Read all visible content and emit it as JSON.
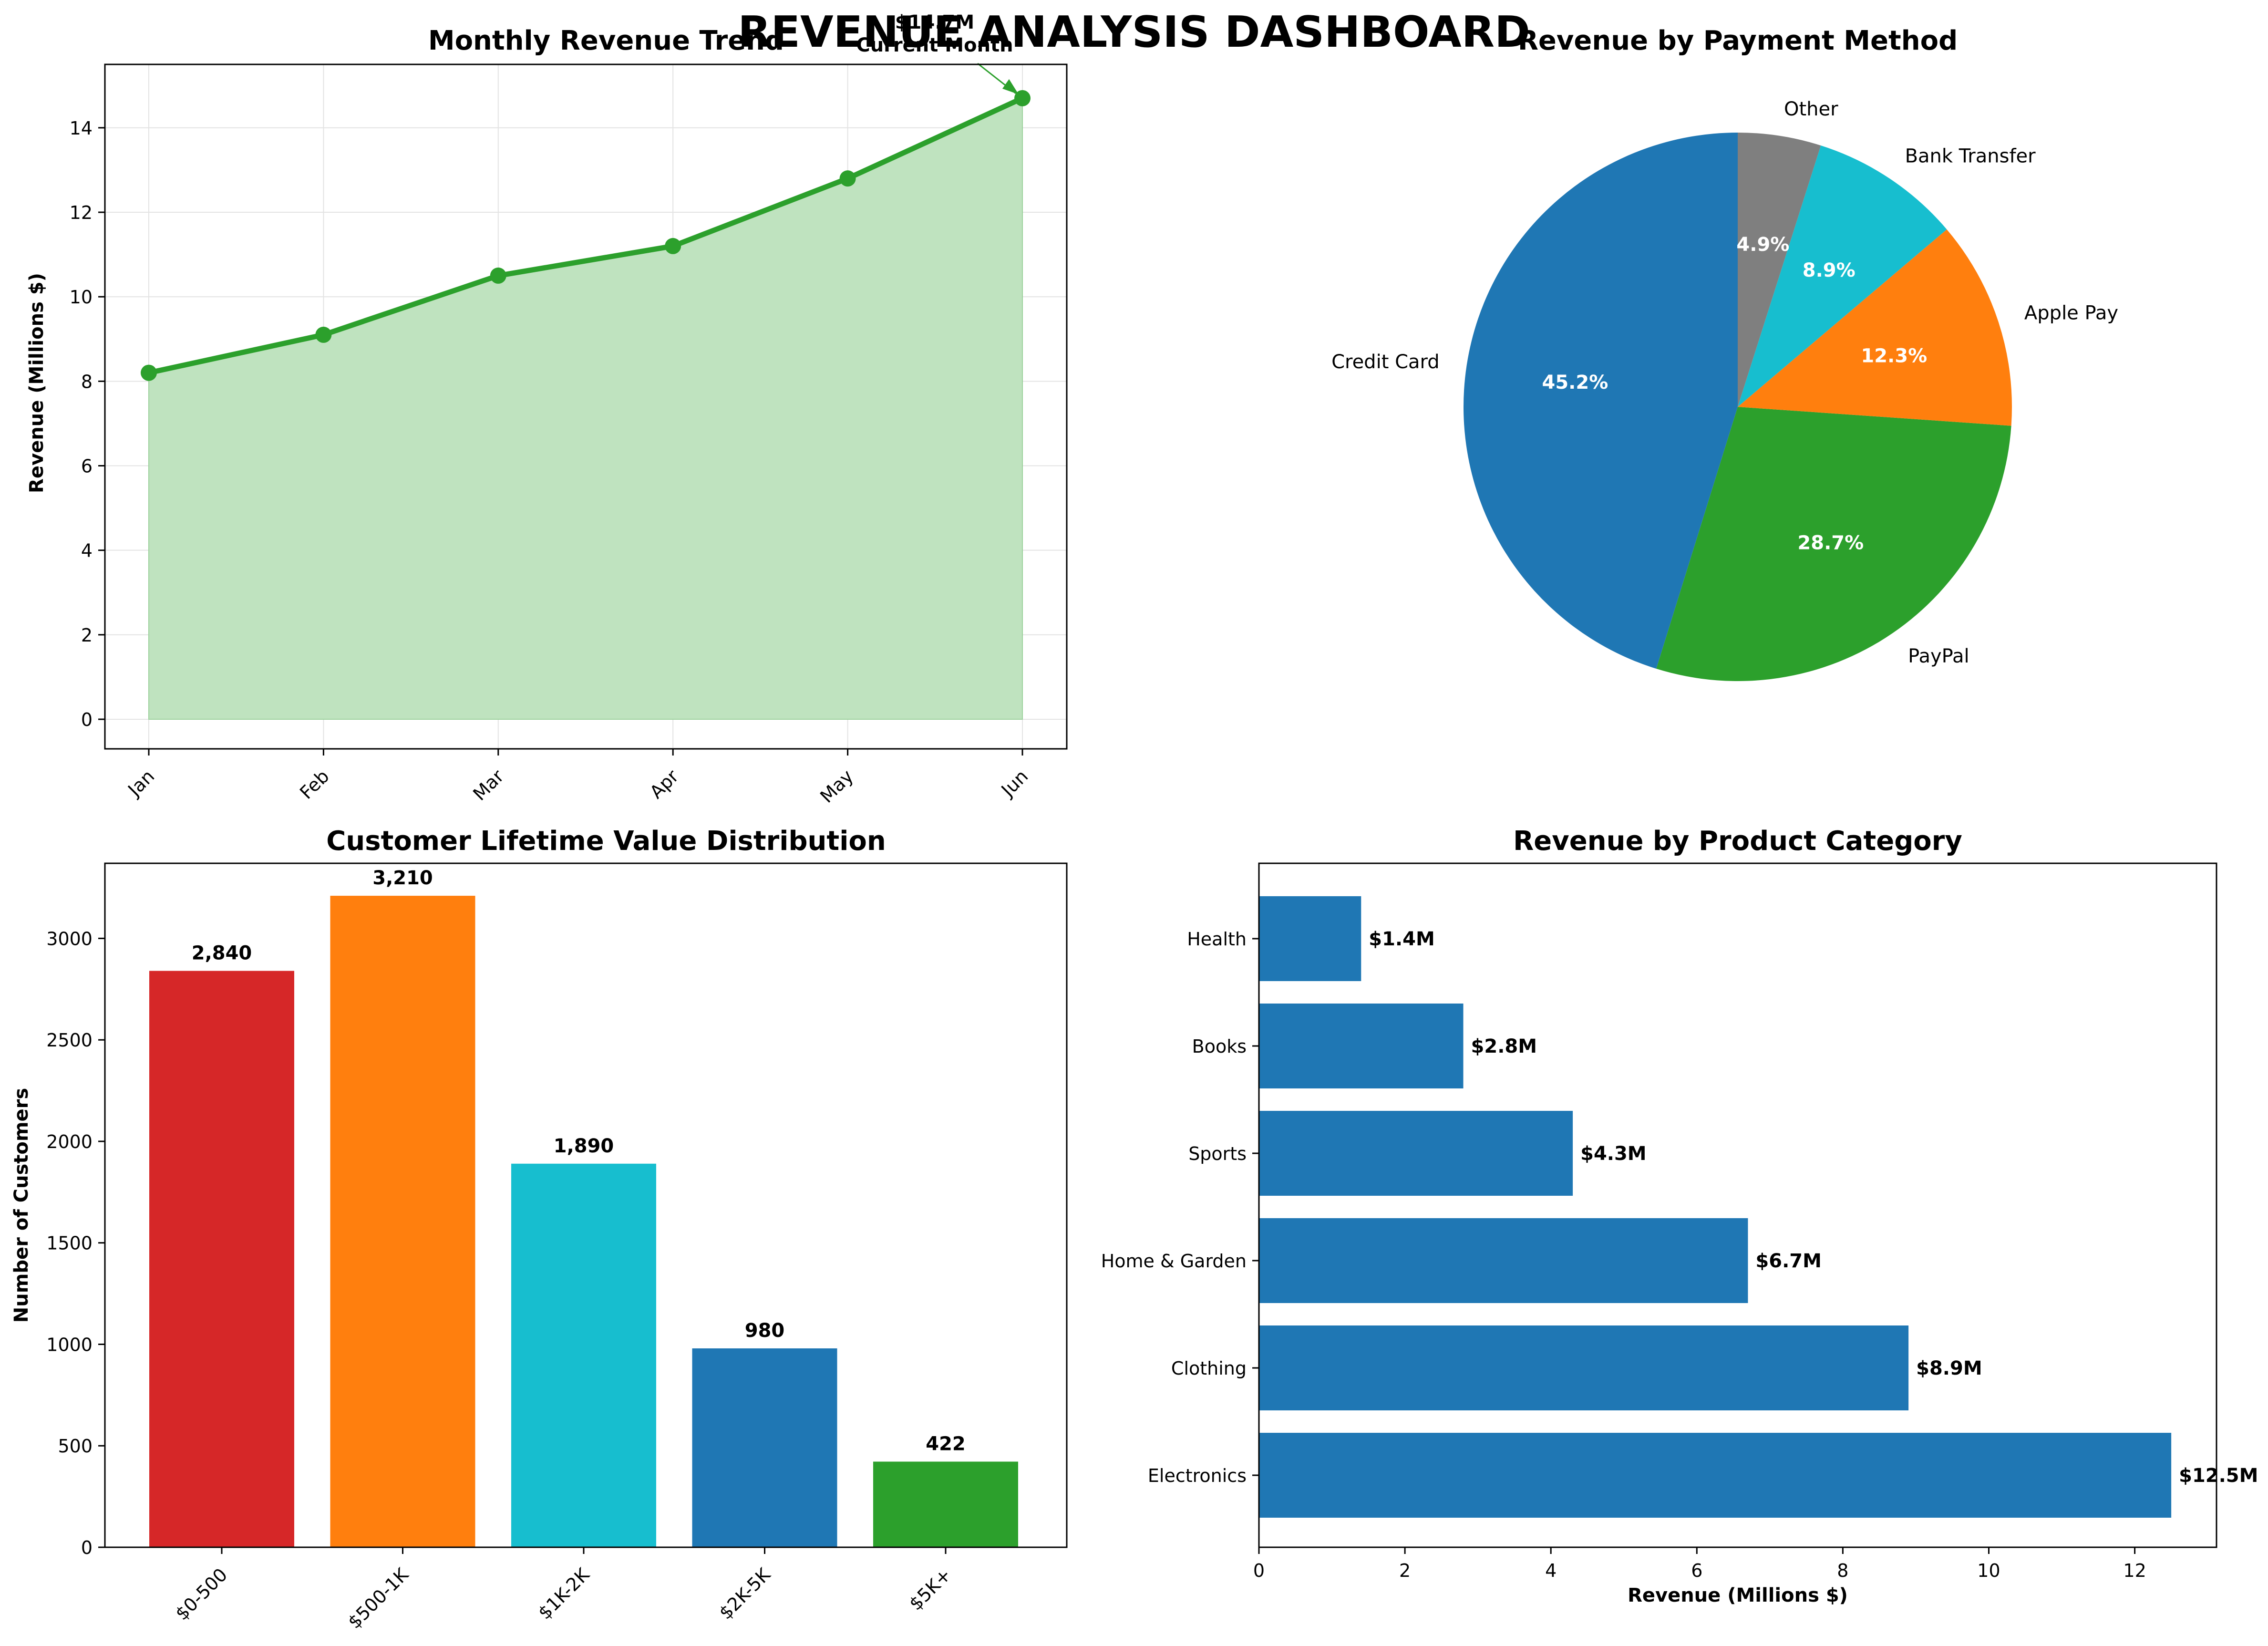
{
  "dashboard": {
    "title": "REVENUE ANALYSIS DASHBOARD"
  },
  "colors": {
    "green": "#2ca02c",
    "green_fill": "#bfe3bf",
    "blue": "#1f77b4",
    "orange": "#ff7f0e",
    "cyan": "#17becf",
    "gray": "#7f7f7f",
    "red": "#d62728",
    "grid": "#e3e3e3"
  },
  "chart_data": [
    {
      "id": "monthly-revenue-trend",
      "type": "area",
      "title": "Monthly Revenue Trend",
      "xlabel": "",
      "ylabel": "Revenue (Millions $)",
      "categories": [
        "Jan",
        "Feb",
        "Mar",
        "Apr",
        "May",
        "Jun"
      ],
      "values": [
        8.2,
        9.1,
        10.5,
        11.2,
        12.8,
        14.7
      ],
      "ylim": [
        -0.7,
        15.5
      ],
      "yticks": [
        0,
        2,
        4,
        6,
        8,
        10,
        12,
        14
      ],
      "grid": true,
      "annotation": {
        "text_value": "$14.7M",
        "text_label": "Current Month",
        "point_index": 5
      }
    },
    {
      "id": "revenue-by-payment-method",
      "type": "pie",
      "title": "Revenue by Payment Method",
      "labels": [
        "Credit Card",
        "PayPal",
        "Apple Pay",
        "Bank Transfer",
        "Other"
      ],
      "values": [
        45.2,
        28.7,
        12.3,
        8.9,
        4.9
      ],
      "pct_labels": [
        "45.2%",
        "28.7%",
        "12.3%",
        "8.9%",
        "4.9%"
      ],
      "colors": [
        "#1f77b4",
        "#2ca02c",
        "#ff7f0e",
        "#17becf",
        "#7f7f7f"
      ],
      "start_angle": 90,
      "direction": "counterclockwise"
    },
    {
      "id": "customer-lifetime-value",
      "type": "bar",
      "title": "Customer Lifetime Value Distribution",
      "xlabel": "",
      "ylabel": "Number of Customers",
      "categories": [
        "$0-500",
        "$500-1K",
        "$1K-2K",
        "$2K-5K",
        "$5K+"
      ],
      "values": [
        2840,
        3210,
        1890,
        980,
        422
      ],
      "value_labels": [
        "2,840",
        "3,210",
        "1,890",
        "980",
        "422"
      ],
      "colors": [
        "#d62728",
        "#ff7f0e",
        "#17becf",
        "#1f77b4",
        "#2ca02c"
      ],
      "ylim": [
        0,
        3370
      ],
      "yticks": [
        0,
        500,
        1000,
        1500,
        2000,
        2500,
        3000
      ],
      "grid": false
    },
    {
      "id": "revenue-by-product-category",
      "type": "bar",
      "orientation": "horizontal",
      "title": "Revenue by Product Category",
      "xlabel": "Revenue (Millions $)",
      "ylabel": "",
      "categories": [
        "Electronics",
        "Clothing",
        "Home & Garden",
        "Sports",
        "Books",
        "Health"
      ],
      "values": [
        12.5,
        8.9,
        6.7,
        4.3,
        2.8,
        1.4
      ],
      "value_labels": [
        "$12.5M",
        "$8.9M",
        "$6.7M",
        "$4.3M",
        "$2.8M",
        "$1.4M"
      ],
      "xlim": [
        0,
        13.12
      ],
      "xticks": [
        0,
        2,
        4,
        6,
        8,
        10,
        12
      ],
      "color": "#1f77b4",
      "grid": false
    }
  ]
}
